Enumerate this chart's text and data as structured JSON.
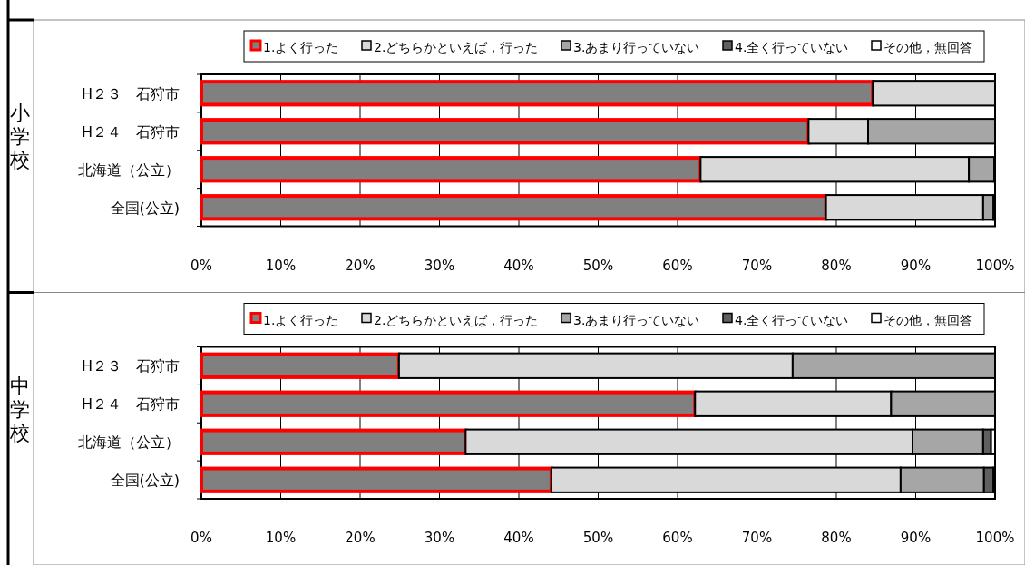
{
  "chart_data": [
    {
      "type": "bar",
      "orientation": "horizontal",
      "stacked": true,
      "annotations": [
        "小学校"
      ],
      "categories": [
        "H２３　石狩市",
        "H２４　石狩市",
        "北海道（公立）",
        "全国(公立)"
      ],
      "series": [
        {
          "name": "1.よく行った",
          "color": "#808080",
          "values": [
            84.6,
            76.5,
            62.9,
            78.7
          ]
        },
        {
          "name": "2.どちらかといえば，行った",
          "color": "#d9d9d9",
          "values": [
            15.4,
            7.5,
            33.8,
            19.8
          ]
        },
        {
          "name": "3.あまり行っていない",
          "color": "#a6a6a6",
          "values": [
            0,
            16.0,
            3.2,
            1.3
          ]
        },
        {
          "name": "4.全く行っていない",
          "color": "#5f5f5f",
          "values": [
            0,
            0,
            0.1,
            0.2
          ]
        },
        {
          "name": "その他，無回答",
          "color": "#ffffff",
          "values": [
            0,
            0,
            0,
            0
          ]
        }
      ],
      "xlim": [
        0,
        100
      ],
      "xticks": [
        {
          "value": 0,
          "label": "0%"
        },
        {
          "value": 10,
          "label": "10%"
        },
        {
          "value": 20,
          "label": "20%"
        },
        {
          "value": 30,
          "label": "30%"
        },
        {
          "value": 40,
          "label": "40%"
        },
        {
          "value": 50,
          "label": "50%"
        },
        {
          "value": 60,
          "label": "60%"
        },
        {
          "value": 70,
          "label": "70%"
        },
        {
          "value": 80,
          "label": "80%"
        },
        {
          "value": 90,
          "label": "90%"
        },
        {
          "value": 100,
          "label": "100%"
        }
      ],
      "grid": "x",
      "legend": "top"
    },
    {
      "type": "bar",
      "orientation": "horizontal",
      "stacked": true,
      "annotations": [
        "中学校"
      ],
      "categories": [
        "H２３　石狩市",
        "H２４　石狩市",
        "北海道（公立）",
        "全国(公立)"
      ],
      "series": [
        {
          "name": "1.よく行った",
          "color": "#808080",
          "values": [
            24.9,
            62.2,
            33.3,
            44.1
          ]
        },
        {
          "name": "2.どちらかといえば，行った",
          "color": "#d9d9d9",
          "values": [
            49.6,
            24.7,
            56.3,
            44.0
          ]
        },
        {
          "name": "3.あまり行っていない",
          "color": "#a6a6a6",
          "values": [
            25.5,
            13.1,
            8.9,
            10.5
          ]
        },
        {
          "name": "4.全く行っていない",
          "color": "#5f5f5f",
          "values": [
            0,
            0,
            1.0,
            1.2
          ]
        },
        {
          "name": "その他，無回答",
          "color": "#ffffff",
          "values": [
            0,
            0,
            0.5,
            0.2
          ]
        }
      ],
      "xlim": [
        0,
        100
      ],
      "xticks": [
        {
          "value": 0,
          "label": "0%"
        },
        {
          "value": 10,
          "label": "10%"
        },
        {
          "value": 20,
          "label": "20%"
        },
        {
          "value": 30,
          "label": "30%"
        },
        {
          "value": 40,
          "label": "40%"
        },
        {
          "value": 50,
          "label": "50%"
        },
        {
          "value": 60,
          "label": "60%"
        },
        {
          "value": 70,
          "label": "70%"
        },
        {
          "value": 80,
          "label": "80%"
        },
        {
          "value": 90,
          "label": "90%"
        },
        {
          "value": 100,
          "label": "100%"
        }
      ],
      "grid": "x",
      "legend": "top"
    }
  ]
}
